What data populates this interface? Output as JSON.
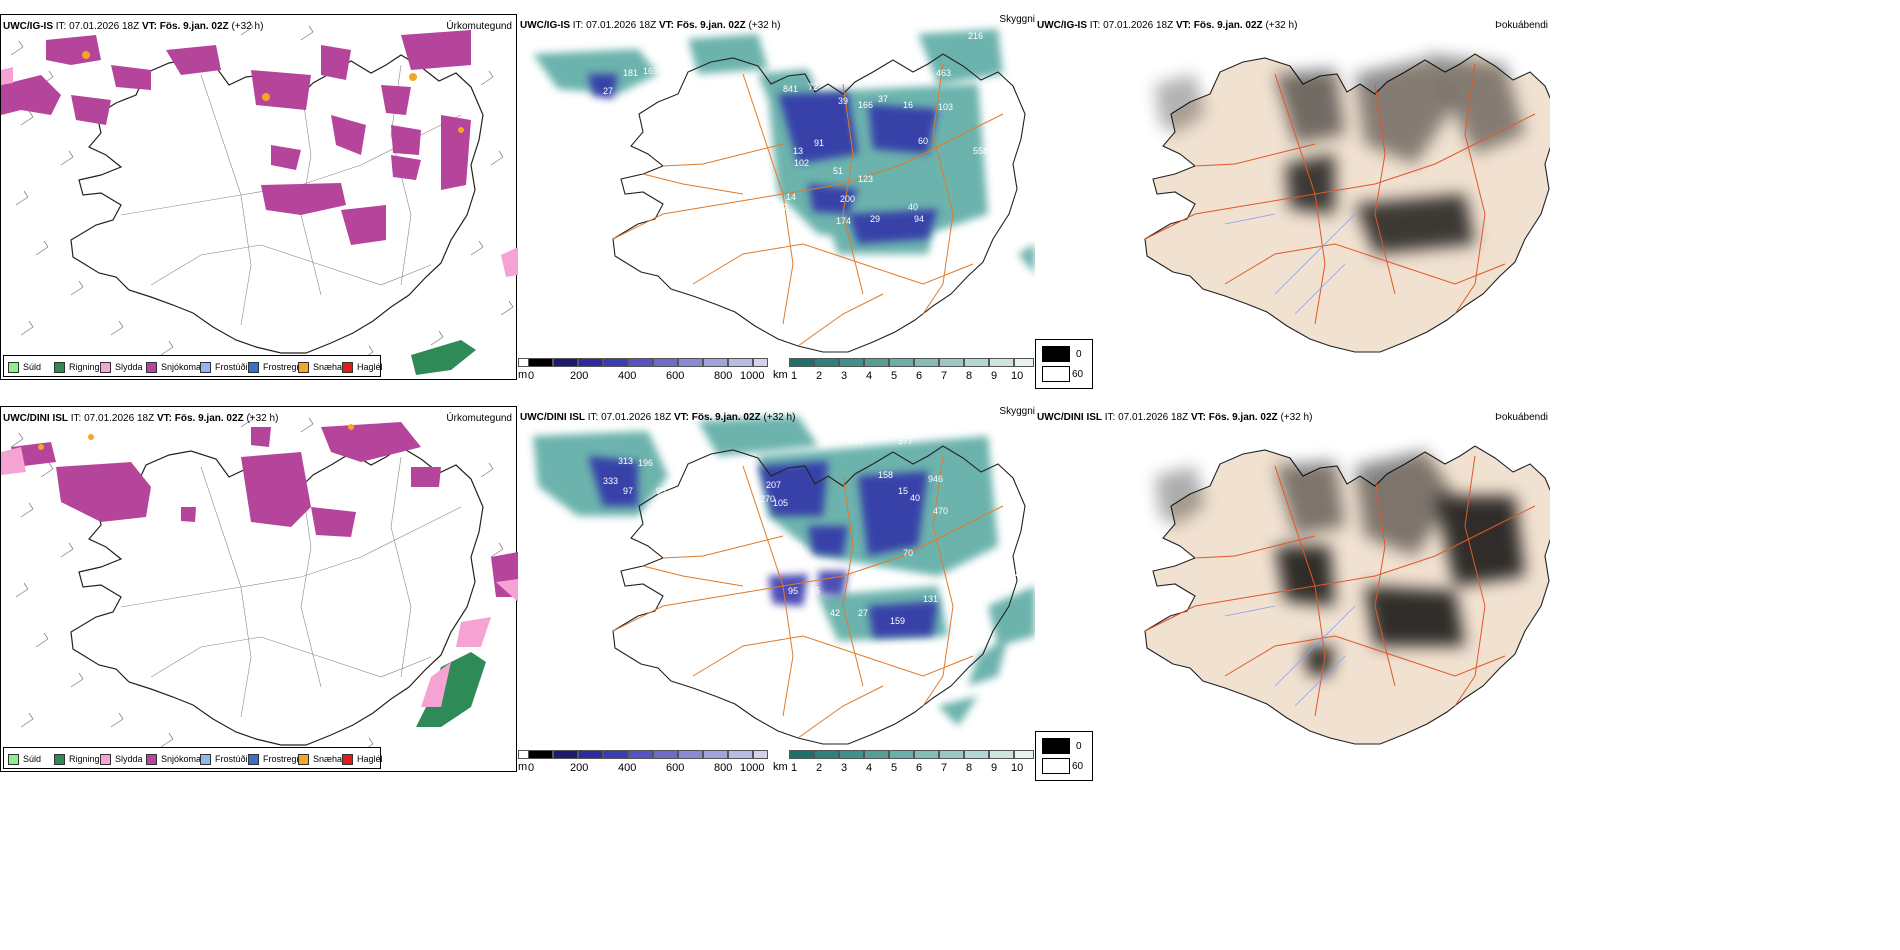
{
  "panels": {
    "r1p1": {
      "source": "UWC/IG-IS",
      "it": "IT: 07.01.2026 18Z",
      "vt_label": "VT:",
      "vt": "Fös. 9.jan. 02Z",
      "offset": "(+32 h)",
      "title": "Úrkomutegund"
    },
    "r1p2": {
      "source": "UWC/IG-IS",
      "it": "IT: 07.01.2026 18Z",
      "vt_label": "VT:",
      "vt": "Fös. 9.jan. 02Z",
      "offset": "(+32 h)",
      "title": "Skyggni"
    },
    "r1p3": {
      "source": "UWC/IG-IS",
      "it": "IT: 07.01.2026 18Z",
      "vt_label": "VT:",
      "vt": "Fös. 9.jan. 02Z",
      "offset": "(+32 h)",
      "title": "Þokuábendi"
    },
    "r2p1": {
      "source": "UWC/DINI ISL",
      "it": "IT: 07.01.2026 18Z",
      "vt_label": "VT:",
      "vt": "Fös. 9.jan. 02Z",
      "offset": "(+32 h)",
      "title": "Úrkomutegund"
    },
    "r2p2": {
      "source": "UWC/DINI ISL",
      "it": "IT: 07.01.2026 18Z",
      "vt_label": "VT:",
      "vt": "Fös. 9.jan. 02Z",
      "offset": "(+32 h)",
      "title": "Skyggni"
    },
    "r2p3": {
      "source": "UWC/DINI ISL",
      "it": "IT: 07.01.2026 18Z",
      "vt_label": "VT:",
      "vt": "Fös. 9.jan. 02Z",
      "offset": "(+32 h)",
      "title": "Þokuábendi"
    }
  },
  "precip_legend": [
    {
      "label": "Súld",
      "color": "#90ee90"
    },
    {
      "label": "Rigning",
      "color": "#2e8b57"
    },
    {
      "label": "Slydda",
      "color": "#f5a3d3"
    },
    {
      "label": "Snjókoma",
      "color": "#b5449b"
    },
    {
      "label": "Frostúði",
      "color": "#8fb8f0"
    },
    {
      "label": "Frostregn",
      "color": "#3a6fc4"
    },
    {
      "label": "Snæhagl",
      "color": "#f5a623"
    },
    {
      "label": "Haglél",
      "color": "#e21b1b"
    }
  ],
  "visibility_scale": {
    "m_unit": "m",
    "m_ticks": [
      "0",
      "200",
      "400",
      "600",
      "800",
      "1000"
    ],
    "m_colors": [
      "#000000",
      "#1a1a6e",
      "#2b2b9b",
      "#3c3cb0",
      "#5555c0",
      "#6e6ec8",
      "#8a8ad2",
      "#a2a2dc",
      "#babae6",
      "#d2d2ef"
    ],
    "km_unit": "km",
    "km_ticks": [
      "1",
      "2",
      "3",
      "4",
      "5",
      "6",
      "7",
      "8",
      "9",
      "10"
    ],
    "km_colors": [
      "#1f6f6a",
      "#2d817a",
      "#3f918a",
      "#54a099",
      "#6aafa8",
      "#82bdb7",
      "#9bcac5",
      "#b4d7d3",
      "#cde4e1",
      "#e6f1f0"
    ]
  },
  "fog_scale": {
    "values": [
      "0",
      "60"
    ],
    "colors": [
      "#000000",
      "#ffffff"
    ]
  },
  "visibility_annotations_r1": [
    "181",
    "169",
    "27",
    "841",
    "72",
    "39",
    "166",
    "37",
    "16",
    "103",
    "13",
    "91",
    "102",
    "51",
    "123",
    "200",
    "174",
    "29",
    "94",
    "182",
    "14",
    "40",
    "60",
    "186",
    "216",
    "463",
    "558",
    "42"
  ],
  "visibility_annotations_r2": [
    "313",
    "196",
    "333",
    "97",
    "95",
    "76",
    "207",
    "270",
    "105",
    "151",
    "999",
    "618",
    "577",
    "158",
    "15",
    "40",
    "70",
    "946",
    "470",
    "95",
    "15",
    "42",
    "27",
    "159",
    "131",
    "223"
  ],
  "colors": {
    "road": "#e07a2a",
    "coast": "#222222",
    "fog_land": "#f1e1d1",
    "snow": "#b5449b",
    "rain": "#2e8b57",
    "sleet": "#f5a3d3",
    "teal": "#3a9a92",
    "navy": "#2e2ea8"
  }
}
